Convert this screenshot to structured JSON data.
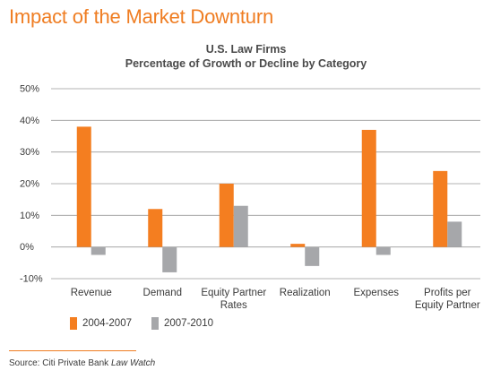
{
  "page_title": "Impact of the Market Downturn",
  "source": {
    "prefix": "Source: Citi Private Bank ",
    "publication": "Law Watch"
  },
  "colors": {
    "accent": "#ef7d22",
    "series_1": "#f47e20",
    "series_2": "#a6a7aa",
    "text": "#3a3a3a"
  },
  "chart_data": {
    "type": "bar",
    "title": "U.S. Law Firms",
    "subtitle": "Percentage of Growth or Decline by Category",
    "xlabel": "",
    "ylabel": "",
    "categories": [
      [
        "Revenue"
      ],
      [
        "Demand"
      ],
      [
        "Equity Partner",
        "Rates"
      ],
      [
        "Realization"
      ],
      [
        "Expenses"
      ],
      [
        "Profits per",
        "Equity Partner"
      ]
    ],
    "series": [
      {
        "name": "2004-2007",
        "color": "#f47e20",
        "values": [
          38,
          12,
          20,
          1,
          37,
          24
        ]
      },
      {
        "name": "2007-2010",
        "color": "#a6a7aa",
        "values": [
          -2.5,
          -8,
          13,
          -6,
          -2.5,
          8
        ]
      }
    ],
    "yticks": [
      {
        "value": 50,
        "label": "50%"
      },
      {
        "value": 40,
        "label": "40%"
      },
      {
        "value": 30,
        "label": "30%"
      },
      {
        "value": 20,
        "label": "20%"
      },
      {
        "value": 10,
        "label": "10%"
      },
      {
        "value": 0,
        "label": "0%"
      },
      {
        "value": -10,
        "label": "-10%"
      }
    ],
    "ylim": [
      -10,
      50
    ],
    "grid": true,
    "legend": "bottom-left"
  }
}
